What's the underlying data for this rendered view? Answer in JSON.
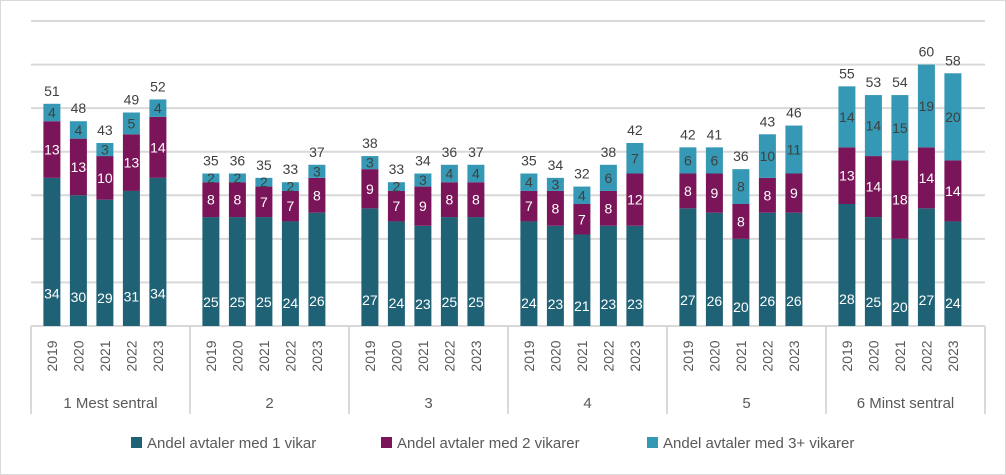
{
  "chart_data": {
    "type": "bar",
    "stacked": true,
    "title": "",
    "xlabel": "",
    "ylabel": "",
    "ylim": [
      0,
      70
    ],
    "grid": true,
    "y_axis_labels_shown": false,
    "legend_position": "bottom",
    "groups": [
      "1 Mest sentral",
      "2",
      "3",
      "4",
      "5",
      "6 Minst sentral"
    ],
    "categories": [
      "2019",
      "2020",
      "2021",
      "2022",
      "2023"
    ],
    "series": [
      {
        "name": "Andel avtaler med 1 vikar",
        "color": "#1F6275",
        "values": [
          [
            34,
            30,
            29,
            31,
            34
          ],
          [
            25,
            25,
            25,
            24,
            26
          ],
          [
            27,
            24,
            23,
            25,
            25
          ],
          [
            24,
            23,
            21,
            23,
            23
          ],
          [
            27,
            26,
            20,
            26,
            26
          ],
          [
            28,
            25,
            20,
            27,
            24
          ]
        ]
      },
      {
        "name": "Andel avtaler med 2 vikarer",
        "color": "#7B1559",
        "values": [
          [
            13,
            13,
            10,
            13,
            14
          ],
          [
            8,
            8,
            7,
            7,
            8
          ],
          [
            9,
            7,
            9,
            8,
            8
          ],
          [
            7,
            8,
            7,
            8,
            12
          ],
          [
            8,
            9,
            8,
            8,
            9
          ],
          [
            13,
            14,
            18,
            14,
            14
          ]
        ]
      },
      {
        "name": "Andel avtaler med 3+ vikarer",
        "color": "#3598B4",
        "values": [
          [
            4,
            4,
            3,
            5,
            4
          ],
          [
            2,
            2,
            2,
            2,
            3
          ],
          [
            3,
            2,
            3,
            4,
            4
          ],
          [
            4,
            3,
            4,
            6,
            7
          ],
          [
            6,
            6,
            8,
            10,
            11
          ],
          [
            14,
            14,
            15,
            19,
            20
          ]
        ]
      }
    ],
    "totals": [
      [
        51,
        48,
        43,
        49,
        52
      ],
      [
        35,
        36,
        35,
        33,
        37
      ],
      [
        38,
        33,
        34,
        36,
        37
      ],
      [
        35,
        34,
        32,
        38,
        42
      ],
      [
        42,
        41,
        36,
        43,
        46
      ],
      [
        55,
        53,
        54,
        60,
        58
      ]
    ]
  }
}
